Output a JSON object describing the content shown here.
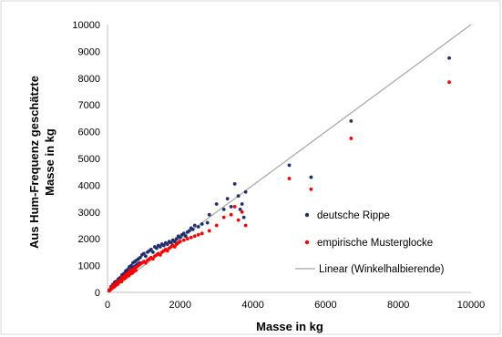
{
  "chart_data": {
    "type": "scatter",
    "xlabel": "Masse in kg",
    "ylabel_line1": "Aus Hum-Frequenz geschätzte",
    "ylabel_line2": "Masse in kg",
    "xlim": [
      0,
      10000
    ],
    "ylim": [
      0,
      10000
    ],
    "x_ticks": [
      "0",
      "2000",
      "4000",
      "6000",
      "8000",
      "10000"
    ],
    "y_ticks": [
      "0",
      "1000",
      "2000",
      "3000",
      "4000",
      "5000",
      "6000",
      "7000",
      "8000",
      "9000",
      "10000"
    ],
    "grid": false,
    "legend_placement": "lower-right",
    "colors": {
      "series1": "#1f2f6e",
      "series2": "#ff0000",
      "line": "#a6a6a6"
    },
    "series": [
      {
        "name": "deutsche Rippe",
        "kind": "points",
        "x": [
          50,
          80,
          100,
          120,
          150,
          180,
          200,
          220,
          250,
          280,
          300,
          320,
          350,
          380,
          400,
          420,
          450,
          480,
          500,
          520,
          550,
          580,
          600,
          620,
          650,
          680,
          700,
          720,
          750,
          780,
          800,
          820,
          850,
          880,
          900,
          950,
          1000,
          1050,
          1100,
          1150,
          1200,
          1250,
          1300,
          1350,
          1400,
          1450,
          1500,
          1550,
          1600,
          1650,
          1700,
          1750,
          1800,
          1850,
          1900,
          1950,
          2000,
          2050,
          2100,
          2150,
          2200,
          2250,
          2300,
          2350,
          2400,
          2500,
          2600,
          2750,
          2800,
          3000,
          3200,
          3300,
          3400,
          3500,
          3600,
          3650,
          3700,
          3750,
          3800,
          5000,
          5600,
          6700,
          9400
        ],
        "y": [
          80,
          130,
          220,
          180,
          300,
          250,
          380,
          300,
          420,
          350,
          500,
          450,
          550,
          480,
          650,
          580,
          700,
          620,
          800,
          700,
          850,
          750,
          950,
          820,
          1000,
          900,
          1100,
          950,
          1150,
          1000,
          1200,
          1050,
          1250,
          1100,
          1300,
          1400,
          1450,
          1350,
          1500,
          1550,
          1600,
          1500,
          1700,
          1650,
          1750,
          1700,
          1800,
          1750,
          1850,
          1800,
          1900,
          1850,
          1950,
          1900,
          2000,
          2100,
          2050,
          2150,
          2200,
          2100,
          2250,
          2300,
          2400,
          2350,
          2500,
          2450,
          2550,
          2600,
          2900,
          3300,
          3100,
          3500,
          3200,
          4050,
          3600,
          3100,
          3300,
          2800,
          3750,
          4750,
          4300,
          6400,
          8750
        ]
      },
      {
        "name": "empirische Musterglocke",
        "kind": "points",
        "x": [
          50,
          80,
          100,
          120,
          150,
          180,
          200,
          220,
          250,
          280,
          300,
          320,
          350,
          380,
          400,
          420,
          450,
          480,
          500,
          520,
          550,
          580,
          600,
          620,
          650,
          680,
          700,
          720,
          750,
          780,
          800,
          850,
          900,
          950,
          1000,
          1050,
          1100,
          1150,
          1200,
          1250,
          1300,
          1350,
          1400,
          1450,
          1500,
          1550,
          1600,
          1650,
          1700,
          1750,
          1800,
          1850,
          1900,
          1950,
          2000,
          2100,
          2200,
          2300,
          2400,
          2500,
          2600,
          2800,
          3000,
          3200,
          3400,
          3500,
          3600,
          3700,
          3800,
          5000,
          5600,
          6700,
          9400
        ],
        "y": [
          60,
          100,
          180,
          140,
          250,
          200,
          300,
          250,
          350,
          300,
          420,
          380,
          450,
          400,
          550,
          480,
          600,
          520,
          650,
          580,
          700,
          620,
          780,
          680,
          820,
          720,
          850,
          780,
          900,
          820,
          950,
          1000,
          1050,
          1100,
          1150,
          1100,
          1200,
          1250,
          1300,
          1250,
          1350,
          1400,
          1450,
          1400,
          1500,
          1550,
          1600,
          1550,
          1650,
          1700,
          1750,
          1700,
          1800,
          1850,
          1900,
          1950,
          2000,
          2050,
          2100,
          2150,
          2200,
          2300,
          2500,
          2800,
          2900,
          3200,
          2700,
          3000,
          2500,
          4250,
          3850,
          5750,
          7850
        ]
      },
      {
        "name": "Linear (Winkelhalbierende)",
        "kind": "line",
        "x": [
          0,
          10000
        ],
        "y": [
          0,
          10000
        ]
      }
    ]
  }
}
